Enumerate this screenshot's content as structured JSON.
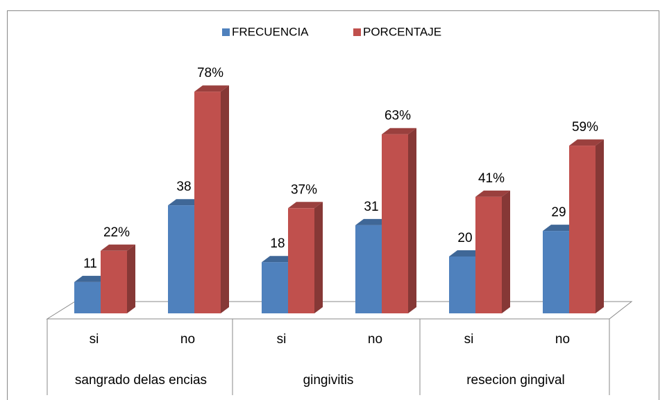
{
  "chart_data": {
    "type": "bar3d",
    "categories": [
      "si",
      "no",
      "si",
      "no",
      "si",
      "no"
    ],
    "groups": [
      "sangrado delas encias",
      "gingivitis",
      "resecion gingival"
    ],
    "series": [
      {
        "name": "FRECUENCIA",
        "color": "#4f81bd",
        "values": [
          11,
          38,
          18,
          31,
          20,
          29
        ]
      },
      {
        "name": "PORCENTAJE",
        "color": "#c0504d",
        "values": [
          22,
          78,
          37,
          63,
          41,
          59
        ],
        "value_labels": [
          "22%",
          "78%",
          "37%",
          "63%",
          "41%",
          "59%"
        ]
      }
    ],
    "legend": "top"
  }
}
